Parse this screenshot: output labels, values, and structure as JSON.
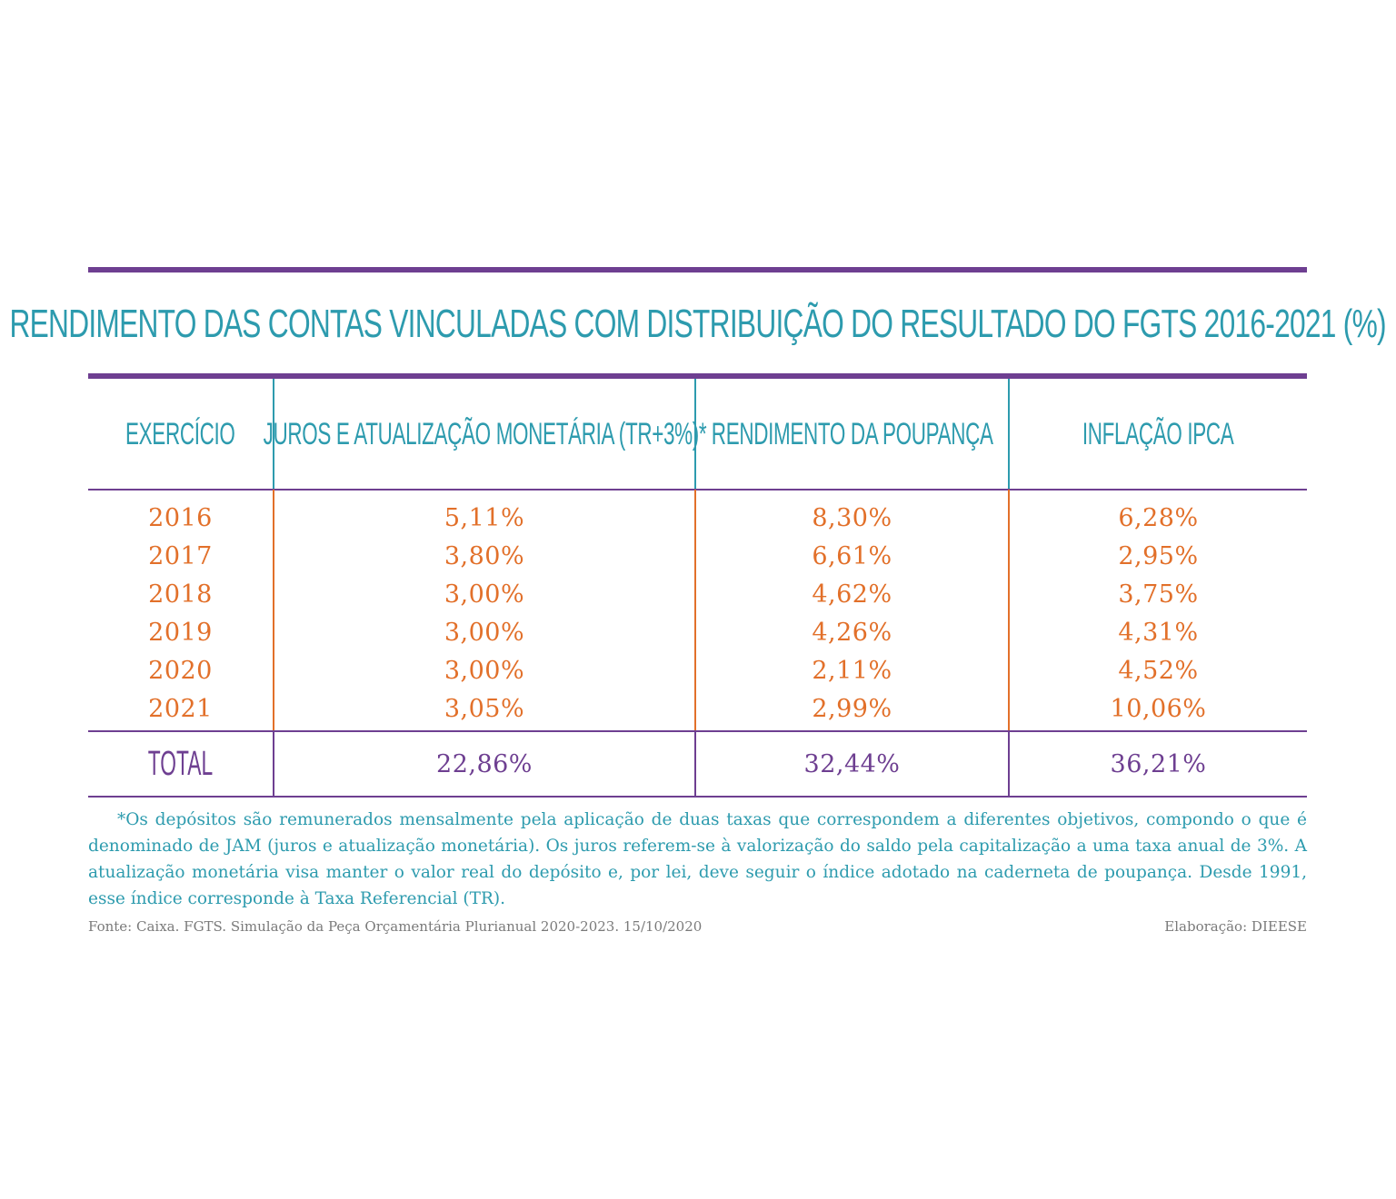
{
  "colors": {
    "purple": "#6e3f91",
    "teal": "#2d9bae",
    "orange": "#e2702a",
    "gray": "#7a7a7a"
  },
  "chart_data": {
    "type": "table",
    "title": "RENDIMENTO DAS CONTAS VINCULADAS COM DISTRIBUIÇÃO DO RESULTADO DO FGTS 2016-2021 (%)",
    "columns": [
      "EXERCÍCIO",
      "JUROS E ATUALIZAÇÃO MONETÁRIA (TR+3%)*",
      "RENDIMENTO DA POUPANÇA",
      "INFLAÇÃO IPCA"
    ],
    "rows": [
      [
        "2016",
        "5,11%",
        "8,30%",
        "6,28%"
      ],
      [
        "2017",
        "3,80%",
        "6,61%",
        "2,95%"
      ],
      [
        "2018",
        "3,00%",
        "4,62%",
        "3,75%"
      ],
      [
        "2019",
        "3,00%",
        "4,26%",
        "4,31%"
      ],
      [
        "2020",
        "3,00%",
        "2,11%",
        "4,52%"
      ],
      [
        "2021",
        "3,05%",
        "2,99%",
        "10,06%"
      ]
    ],
    "total": [
      "TOTAL",
      "22,86%",
      "32,44%",
      "36,21%"
    ]
  },
  "footnote": "*Os depósitos são remunerados mensalmente pela aplicação de duas taxas que correspondem a diferentes objetivos, compondo o que é denominado de JAM (juros e atualização monetária). Os juros referem-se à valorização do saldo pela capitalização a uma taxa anual de 3%. A atualização monetária visa manter o valor real do depósito e, por lei, deve seguir o índice adotado na caderneta de poupança. Desde 1991, esse índice corresponde à Taxa Referencial (TR).",
  "source": "Fonte: Caixa. FGTS. Simulação da Peça Orçamentária Plurianual 2020-2023. 15/10/2020",
  "credit": "Elaboração: DIEESE"
}
